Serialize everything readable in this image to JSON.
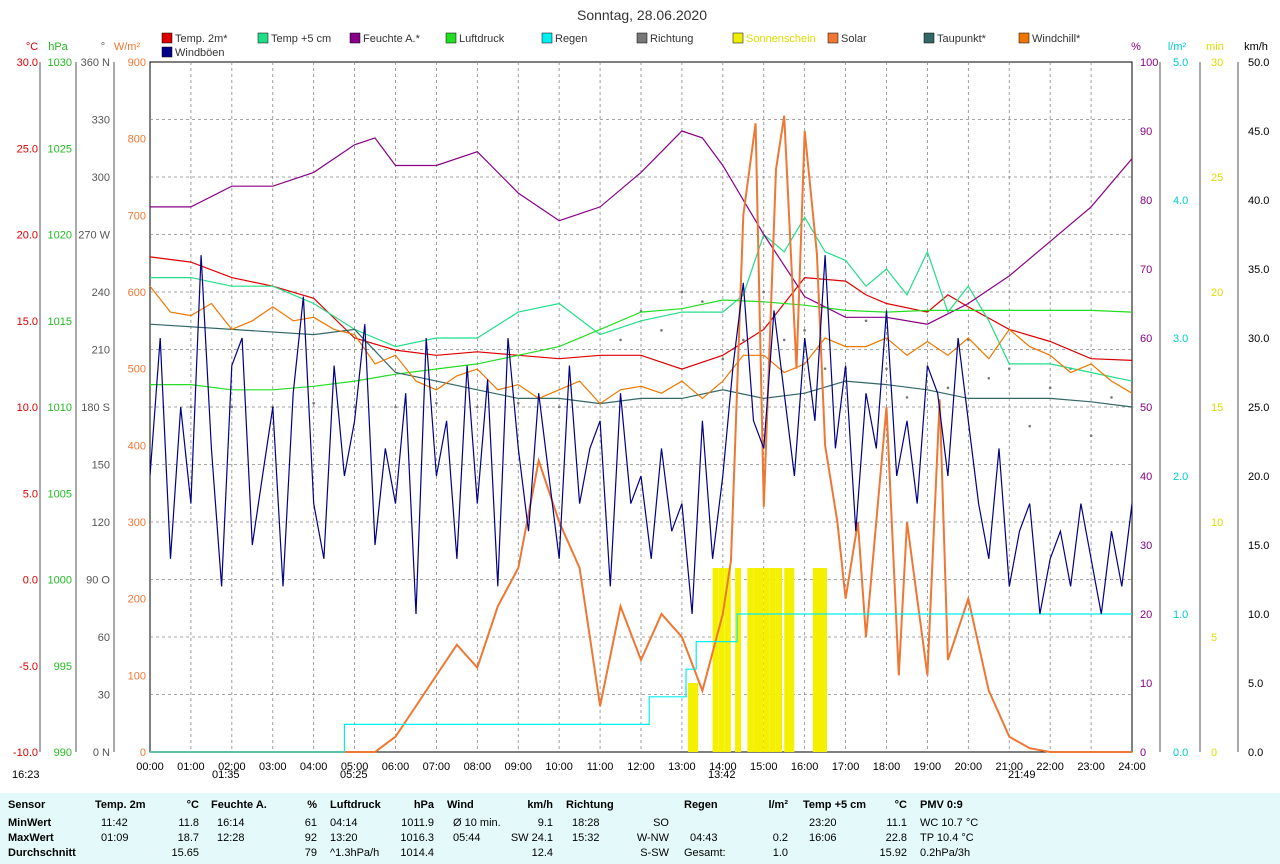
{
  "chart_data": {
    "type": "line",
    "title": "Sonntag, 28.06.2020",
    "legend": [
      {
        "name": "Temp. 2m*",
        "color": "#dd0000"
      },
      {
        "name": "Temp +5 cm",
        "color": "#22dd88"
      },
      {
        "name": "Feuchte A.*",
        "color": "#880088"
      },
      {
        "name": "Luftdruck",
        "color": "#22dd22"
      },
      {
        "name": "Regen",
        "color": "#00eeee"
      },
      {
        "name": "Richtung",
        "color": "#777777"
      },
      {
        "name": "Sonnenschein",
        "color": "#eeee00"
      },
      {
        "name": "Solar",
        "color": "#ee7733"
      },
      {
        "name": "Taupunkt*",
        "color": "#336666"
      },
      {
        "name": "Windchill*",
        "color": "#ee7700"
      },
      {
        "name": "Windböen",
        "color": "#000088"
      }
    ],
    "x_ticks": [
      "00:00",
      "01:00",
      "02:00",
      "03:00",
      "04:00",
      "05:00",
      "06:00",
      "07:00",
      "08:00",
      "09:00",
      "10:00",
      "11:00",
      "12:00",
      "13:00",
      "14:00",
      "15:00",
      "16:00",
      "17:00",
      "18:00",
      "19:00",
      "20:00",
      "21:00",
      "22:00",
      "23:00",
      "24:00"
    ],
    "axes": {
      "temp": {
        "unit": "°C",
        "min": -10,
        "max": 30,
        "ticks": [
          "30.0",
          "25.0",
          "20.0",
          "15.0",
          "10.0",
          "5.0",
          "0.0",
          "-5.0",
          "-10.0"
        ],
        "color": "#dd0000"
      },
      "pressure": {
        "unit": "hPa",
        "min": 990,
        "max": 1030,
        "ticks": [
          "1030",
          "1025",
          "1020",
          "1015",
          "1010",
          "1005",
          "1000",
          "995",
          "990"
        ],
        "color": "#22bb22"
      },
      "direction": {
        "unit": "°",
        "min": 0,
        "max": 360,
        "ticks": [
          "360 N",
          "330",
          "300",
          "270 W",
          "240",
          "210",
          "180 S",
          "150",
          "120",
          "90 O",
          "60",
          "30",
          "0 N"
        ],
        "color": "#555555"
      },
      "solar": {
        "unit": "W/m²",
        "min": 0,
        "max": 900,
        "ticks": [
          "900",
          "800",
          "700",
          "600",
          "500",
          "400",
          "300",
          "200",
          "100",
          "0"
        ],
        "color": "#ee7733"
      },
      "humidity": {
        "unit": "%",
        "min": 0,
        "max": 100,
        "ticks": [
          "100",
          "90",
          "80",
          "70",
          "60",
          "50",
          "40",
          "30",
          "20",
          "10",
          "0"
        ],
        "color": "#880088"
      },
      "rain": {
        "unit": "l/m²",
        "min": 0,
        "max": 5,
        "ticks": [
          "5.0",
          "4.0",
          "3.0",
          "2.0",
          "1.0",
          "0.0"
        ],
        "color": "#00cccc"
      },
      "sunshine": {
        "unit": "min",
        "min": 0,
        "max": 30,
        "ticks": [
          "30",
          "25",
          "20",
          "15",
          "10",
          "5",
          "0"
        ],
        "color": "#dddd00"
      },
      "wind": {
        "unit": "km/h",
        "min": 0,
        "max": 50,
        "ticks": [
          "50.0",
          "45.0",
          "40.0",
          "35.0",
          "30.0",
          "25.0",
          "20.0",
          "15.0",
          "10.0",
          "5.0",
          "0.0"
        ],
        "color": "#000000"
      }
    },
    "series": [
      {
        "name": "Temp. 2m*",
        "color": "#dd0000",
        "axis": "temp",
        "x": [
          0,
          1,
          2,
          3,
          4,
          5,
          6,
          7,
          8,
          9,
          10,
          11,
          12,
          13,
          14,
          15,
          15.5,
          16,
          17,
          17.5,
          18,
          19,
          19.5,
          20,
          21,
          22,
          23,
          24
        ],
        "y": [
          18.7,
          18.4,
          17.5,
          17.0,
          16.3,
          14.0,
          13.3,
          13.0,
          13.2,
          13.0,
          12.8,
          13.0,
          13.0,
          12.2,
          13.0,
          14.5,
          16.0,
          17.5,
          17.3,
          16.5,
          16.0,
          15.5,
          16.5,
          15.8,
          14.5,
          13.8,
          12.8,
          12.7
        ]
      },
      {
        "name": "Temp +5 cm",
        "color": "#22dd88",
        "axis": "temp",
        "x": [
          0,
          1,
          2,
          3,
          4,
          5,
          5.5,
          6,
          7,
          8,
          9,
          10,
          11,
          12,
          13,
          14,
          14.5,
          15,
          15.5,
          16,
          16.5,
          17,
          17.5,
          18,
          18.5,
          19,
          19.5,
          20,
          20.5,
          21,
          22,
          23,
          24
        ],
        "y": [
          17.5,
          17.5,
          17.0,
          17.0,
          16.0,
          14.5,
          14.0,
          13.5,
          14.0,
          14.0,
          15.5,
          16.0,
          14.2,
          15.0,
          15.5,
          15.5,
          16.5,
          20.0,
          19.0,
          21.0,
          19.0,
          18.5,
          17.0,
          18.0,
          16.5,
          19.0,
          15.5,
          17.0,
          15.0,
          12.5,
          12.5,
          12.0,
          11.5
        ]
      },
      {
        "name": "Feuchte A.*",
        "color": "#880088",
        "axis": "humidity",
        "x": [
          0,
          1,
          2,
          3,
          4,
          5,
          5.5,
          6,
          7,
          8,
          9,
          10,
          10.5,
          11,
          12,
          12.5,
          13,
          13.5,
          14,
          15,
          16,
          17,
          18,
          19,
          20,
          21,
          22,
          23,
          24
        ],
        "y": [
          79,
          79,
          82,
          82,
          84,
          88,
          89,
          85,
          85,
          87,
          81,
          77,
          78,
          79,
          84,
          87,
          90,
          89,
          85,
          75,
          66,
          63,
          63,
          62,
          65,
          69,
          74,
          79,
          86
        ]
      },
      {
        "name": "Luftdruck",
        "color": "#22dd22",
        "axis": "pressure",
        "x": [
          0,
          1,
          2,
          3,
          4,
          5,
          6,
          7,
          8,
          9,
          10,
          11,
          12,
          13,
          14,
          15,
          16,
          17,
          18,
          19,
          20,
          21,
          22,
          23,
          24
        ],
        "y": [
          1011.3,
          1011.3,
          1011.0,
          1011.0,
          1011.2,
          1011.5,
          1011.9,
          1012.2,
          1012.5,
          1013.0,
          1013.5,
          1014.5,
          1015.5,
          1015.7,
          1016.2,
          1016.1,
          1015.9,
          1015.6,
          1015.5,
          1015.6,
          1015.6,
          1015.6,
          1015.6,
          1015.6,
          1015.5
        ]
      },
      {
        "name": "Taupunkt*",
        "color": "#336666",
        "axis": "temp",
        "x": [
          0,
          2,
          4,
          5,
          6,
          7,
          8,
          9,
          10,
          11,
          12,
          13,
          14,
          15,
          16,
          17,
          18,
          19,
          20,
          21,
          22,
          23,
          24
        ],
        "y": [
          14.8,
          14.5,
          14.2,
          14.5,
          12.0,
          11.5,
          11.0,
          10.5,
          10.5,
          10.2,
          10.5,
          10.5,
          11.0,
          10.5,
          10.8,
          11.5,
          11.3,
          11.0,
          10.5,
          10.5,
          10.5,
          10.3,
          10.0
        ]
      },
      {
        "name": "Windchill*",
        "color": "#ee7700",
        "axis": "temp",
        "x": [
          0,
          0.5,
          1,
          1.5,
          2,
          2.5,
          3,
          3.5,
          4,
          4.5,
          5,
          5.5,
          6,
          6.5,
          7,
          7.5,
          8,
          8.5,
          9,
          9.5,
          10,
          10.5,
          11,
          11.5,
          12,
          12.5,
          13,
          13.5,
          14,
          14.5,
          15,
          15.5,
          16,
          16.5,
          17,
          17.5,
          18,
          18.5,
          19,
          19.5,
          20,
          20.5,
          21,
          21.5,
          22,
          22.5,
          23,
          23.5,
          24
        ],
        "y": [
          17.0,
          15.5,
          15.3,
          16.0,
          14.5,
          15.0,
          15.8,
          15.0,
          15.2,
          14.5,
          14.2,
          12.5,
          13.0,
          11.5,
          11.0,
          11.8,
          12.2,
          11.0,
          11.3,
          10.5,
          11.0,
          11.5,
          10.2,
          11.0,
          11.2,
          10.8,
          11.5,
          10.5,
          11.5,
          13.0,
          13.0,
          12.0,
          12.5,
          14.0,
          13.5,
          13.5,
          14.0,
          13.0,
          13.8,
          13.0,
          14.0,
          12.8,
          14.5,
          13.5,
          13.0,
          12.0,
          12.5,
          11.5,
          10.8
        ]
      },
      {
        "name": "Solar",
        "color": "#ee7733",
        "axis": "solar",
        "x": [
          0,
          5.5,
          6,
          6.5,
          7,
          7.5,
          8,
          8.5,
          9,
          9.5,
          10,
          10.5,
          11,
          11.5,
          12,
          12.5,
          13,
          13.5,
          14,
          14.2,
          14.5,
          14.8,
          15,
          15.3,
          15.5,
          15.8,
          16,
          16.3,
          16.5,
          16.8,
          17,
          17.3,
          17.5,
          18,
          18.3,
          18.5,
          19,
          19.3,
          19.5,
          20,
          20.5,
          21,
          21.5,
          22,
          22.5,
          24
        ],
        "y": [
          0,
          0,
          20,
          60,
          100,
          140,
          110,
          190,
          240,
          380,
          300,
          240,
          60,
          190,
          120,
          180,
          150,
          80,
          180,
          250,
          700,
          820,
          320,
          760,
          830,
          500,
          810,
          650,
          400,
          300,
          200,
          300,
          150,
          450,
          100,
          300,
          100,
          460,
          120,
          200,
          80,
          20,
          5,
          0,
          0,
          0
        ]
      },
      {
        "name": "Regen",
        "color": "#00eeee",
        "axis": "rain",
        "step": true,
        "x": [
          0,
          4.75,
          4.75,
          12.2,
          12.2,
          13.1,
          13.1,
          13.35,
          13.35,
          14.35,
          14.35,
          24
        ],
        "y": [
          0,
          0,
          0.2,
          0.2,
          0.4,
          0.4,
          0.6,
          0.6,
          0.8,
          0.8,
          1.0,
          1.0
        ]
      },
      {
        "name": "Windböen",
        "color": "#000088",
        "axis": "wind",
        "x": [
          0,
          0.25,
          0.5,
          0.75,
          1,
          1.25,
          1.5,
          1.75,
          2,
          2.25,
          2.5,
          2.75,
          3,
          3.25,
          3.5,
          3.75,
          4,
          4.25,
          4.5,
          4.75,
          5,
          5.25,
          5.5,
          5.75,
          6,
          6.25,
          6.5,
          6.75,
          7,
          7.25,
          7.5,
          7.75,
          8,
          8.25,
          8.5,
          8.75,
          9,
          9.25,
          9.5,
          9.75,
          10,
          10.25,
          10.5,
          10.75,
          11,
          11.25,
          11.5,
          11.75,
          12,
          12.25,
          12.5,
          12.75,
          13,
          13.25,
          13.5,
          13.75,
          14,
          14.25,
          14.5,
          14.75,
          15,
          15.25,
          15.5,
          15.75,
          16,
          16.25,
          16.5,
          16.75,
          17,
          17.25,
          17.5,
          17.75,
          18,
          18.25,
          18.5,
          18.75,
          19,
          19.25,
          19.5,
          19.75,
          20,
          20.25,
          20.5,
          20.75,
          21,
          21.25,
          21.5,
          21.75,
          22,
          22.25,
          22.5,
          22.75,
          23,
          23.25,
          23.5,
          23.75,
          24
        ],
        "y": [
          20,
          30,
          14,
          25,
          18,
          36,
          22,
          12,
          28,
          30,
          15,
          20,
          25,
          12,
          26,
          33,
          18,
          14,
          28,
          20,
          24,
          31,
          15,
          22,
          18,
          26,
          10,
          30,
          20,
          24,
          14,
          28,
          18,
          27,
          12,
          30,
          22,
          16,
          26,
          20,
          14,
          28,
          18,
          22,
          24,
          12,
          26,
          18,
          20,
          14,
          22,
          16,
          18,
          10,
          24,
          14,
          20,
          28,
          34,
          24,
          22,
          32,
          26,
          20,
          30,
          24,
          36,
          22,
          28,
          16,
          26,
          22,
          32,
          20,
          24,
          18,
          28,
          26,
          20,
          30,
          24,
          18,
          14,
          22,
          12,
          16,
          18,
          10,
          14,
          16,
          12,
          18,
          14,
          10,
          16,
          12,
          18
        ]
      }
    ],
    "direction_points": {
      "x": [
        0,
        1,
        2,
        3,
        4,
        5,
        6,
        7,
        8,
        9,
        10,
        11,
        11.5,
        12,
        12.5,
        13,
        13.5,
        14,
        14.5,
        15,
        15.5,
        16,
        16.5,
        17,
        17.5,
        18,
        18.5,
        19,
        19.5,
        20,
        20.5,
        21,
        21.5,
        22,
        22.5,
        23,
        23.5,
        24
      ],
      "y": [
        180,
        180,
        180,
        180,
        182,
        180,
        180,
        182,
        180,
        182,
        180,
        182,
        215,
        230,
        220,
        240,
        235,
        205,
        215,
        240,
        215,
        220,
        200,
        200,
        225,
        200,
        185,
        230,
        190,
        215,
        195,
        200,
        170,
        190,
        200,
        165,
        185,
        180
      ]
    },
    "sunshine_bars": {
      "x": [
        13.15,
        13.25,
        13.75,
        13.9,
        14.05,
        14.3,
        14.6,
        14.75,
        14.85,
        15.0,
        15.15,
        15.3,
        15.5,
        15.6,
        16.2,
        16.3,
        16.4
      ],
      "y": [
        3,
        3,
        8,
        8,
        8,
        8,
        8,
        8,
        8,
        8,
        8,
        8,
        8,
        8,
        8,
        8,
        8
      ]
    },
    "markers": [
      {
        "label": "16:23",
        "side": "left"
      },
      {
        "label": "01:35"
      },
      {
        "label": "05:25"
      },
      {
        "label": "13:42"
      },
      {
        "label": "21:49"
      }
    ]
  },
  "stats": {
    "sensor": {
      "header": "Sensor",
      "rows": [
        "MinWert",
        "MaxWert",
        "Durchschnitt"
      ]
    },
    "temp": {
      "header": "Temp. 2m",
      "unit": "°C",
      "rows": [
        [
          "11:42",
          "11.8"
        ],
        [
          "01:09",
          "18.7"
        ],
        [
          "",
          "15.65"
        ]
      ]
    },
    "hum": {
      "header": "Feuchte A.",
      "unit": "%",
      "rows": [
        [
          "16:14",
          "61"
        ],
        [
          "12:28",
          "92"
        ],
        [
          "",
          "79"
        ]
      ]
    },
    "press": {
      "header": "Luftdruck",
      "unit": "hPa",
      "rows": [
        [
          "04:14",
          "1011.9"
        ],
        [
          "13:20",
          "1016.3"
        ],
        [
          "^1.3hPa/h",
          "1014.4"
        ]
      ]
    },
    "wind": {
      "header": "Wind",
      "unit": "km/h",
      "rows": [
        [
          "Ø 10 min.",
          "9.1"
        ],
        [
          "05:44",
          "SW 24.1"
        ],
        [
          "",
          "12.4"
        ]
      ]
    },
    "dir": {
      "header": "Richtung",
      "unit": "",
      "rows": [
        [
          "18:28",
          "SO"
        ],
        [
          "15:32",
          "W-NW"
        ],
        [
          "",
          "S-SW"
        ]
      ]
    },
    "rain": {
      "header": "Regen",
      "unit": "l/m²",
      "rows": [
        [
          "",
          ""
        ],
        [
          "04:43",
          "0.2"
        ],
        [
          "Gesamt:",
          "1.0"
        ]
      ]
    },
    "t5": {
      "header": "Temp +5 cm",
      "unit": "°C",
      "rows": [
        [
          "23:20",
          "11.1"
        ],
        [
          "16:06",
          "22.8"
        ],
        [
          "",
          "15.92"
        ]
      ]
    },
    "pmv": {
      "header": "PMV 0:9",
      "rows": [
        "WC 10.7 °C",
        "TP 10.4 °C",
        "0.2hPa/3h"
      ]
    }
  }
}
